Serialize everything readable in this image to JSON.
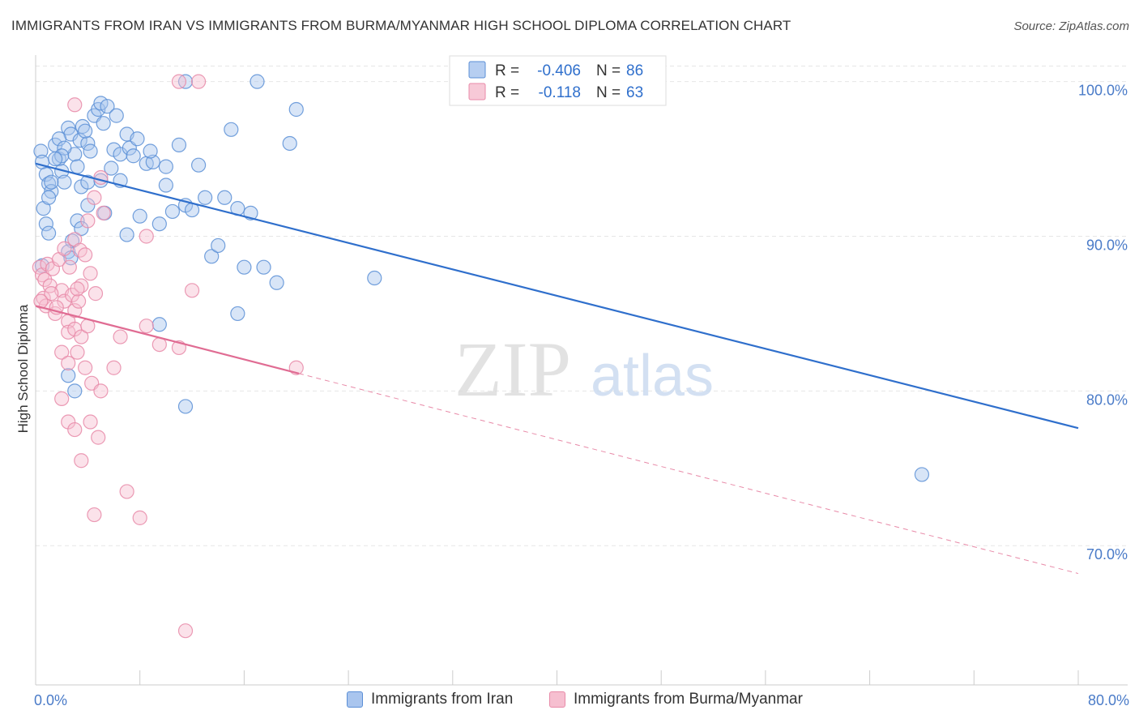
{
  "title": "IMMIGRANTS FROM IRAN VS IMMIGRANTS FROM BURMA/MYANMAR HIGH SCHOOL DIPLOMA CORRELATION CHART",
  "source": "Source: ZipAtlas.com",
  "watermark": {
    "zip": "ZIP",
    "atlas": "atlas"
  },
  "chart_data": {
    "type": "scatter",
    "title": "IMMIGRANTS FROM IRAN VS IMMIGRANTS FROM BURMA/MYANMAR HIGH SCHOOL DIPLOMA CORRELATION CHART",
    "xlabel": "",
    "ylabel": "High School Diploma",
    "xlim": [
      0,
      80
    ],
    "ylim": [
      61,
      101.5
    ],
    "x_tick_labels": [
      "0.0%",
      "80.0%"
    ],
    "y_ticks": [
      70,
      80,
      90,
      100
    ],
    "y_tick_labels": [
      "70.0%",
      "80.0%",
      "90.0%",
      "100.0%"
    ],
    "grid": true,
    "legend_position": "top-center",
    "series": [
      {
        "name": "Immigrants from Iran",
        "color": "#5b8fd6",
        "fill": "#a9c5ee",
        "r_label": "R =",
        "r_value": "-0.406",
        "n_label": "N =",
        "n_value": "86",
        "trend": {
          "x0": 0,
          "y0": 94.7,
          "x1": 80,
          "y1": 77.6,
          "dashed_from": null
        },
        "points": [
          [
            0.4,
            95.5
          ],
          [
            0.5,
            94.8
          ],
          [
            0.8,
            94.0
          ],
          [
            1.0,
            93.4
          ],
          [
            1.2,
            92.9
          ],
          [
            0.6,
            91.8
          ],
          [
            0.8,
            90.8
          ],
          [
            1.0,
            90.2
          ],
          [
            1.5,
            95.9
          ],
          [
            1.8,
            95.0
          ],
          [
            2.0,
            94.2
          ],
          [
            2.2,
            93.5
          ],
          [
            2.5,
            97.0
          ],
          [
            2.7,
            96.6
          ],
          [
            3.0,
            95.3
          ],
          [
            3.2,
            94.5
          ],
          [
            3.4,
            96.2
          ],
          [
            3.6,
            97.1
          ],
          [
            4.0,
            96.0
          ],
          [
            4.2,
            95.5
          ],
          [
            4.5,
            97.8
          ],
          [
            4.8,
            98.2
          ],
          [
            5.0,
            98.6
          ],
          [
            5.2,
            97.3
          ],
          [
            5.5,
            98.4
          ],
          [
            3.5,
            93.2
          ],
          [
            4.0,
            93.5
          ],
          [
            5.0,
            93.6
          ],
          [
            5.3,
            91.5
          ],
          [
            3.2,
            91.0
          ],
          [
            3.5,
            90.5
          ],
          [
            2.8,
            89.7
          ],
          [
            2.5,
            89.0
          ],
          [
            2.7,
            88.6
          ],
          [
            6.0,
            95.6
          ],
          [
            6.5,
            95.3
          ],
          [
            7.0,
            96.6
          ],
          [
            7.2,
            95.7
          ],
          [
            7.5,
            95.2
          ],
          [
            8.5,
            94.7
          ],
          [
            9.0,
            94.8
          ],
          [
            10.0,
            94.5
          ],
          [
            11.0,
            95.9
          ],
          [
            7.0,
            90.1
          ],
          [
            8.0,
            91.3
          ],
          [
            9.5,
            90.8
          ],
          [
            10.5,
            91.6
          ],
          [
            11.5,
            92.0
          ],
          [
            12.0,
            91.7
          ],
          [
            13.5,
            88.7
          ],
          [
            14.0,
            89.4
          ],
          [
            15.5,
            91.8
          ],
          [
            16.0,
            88.0
          ],
          [
            16.5,
            91.5
          ],
          [
            17.5,
            88.0
          ],
          [
            18.5,
            87.0
          ],
          [
            19.5,
            96.0
          ],
          [
            20.0,
            98.2
          ],
          [
            15.0,
            96.9
          ],
          [
            14.5,
            92.5
          ],
          [
            10.0,
            93.3
          ],
          [
            6.5,
            93.6
          ],
          [
            26.0,
            87.3
          ],
          [
            15.5,
            85.0
          ],
          [
            9.5,
            84.3
          ],
          [
            2.5,
            81.0
          ],
          [
            3.0,
            80.0
          ],
          [
            11.5,
            79.0
          ],
          [
            68,
            74.6
          ],
          [
            11.5,
            100.0
          ],
          [
            17.0,
            100.0
          ],
          [
            4.0,
            92.0
          ],
          [
            1.8,
            96.3
          ],
          [
            2.2,
            95.7
          ],
          [
            6.2,
            97.8
          ],
          [
            7.8,
            96.3
          ],
          [
            1.0,
            92.5
          ],
          [
            1.2,
            93.5
          ],
          [
            2.0,
            95.2
          ],
          [
            3.8,
            96.8
          ],
          [
            5.8,
            94.4
          ],
          [
            8.8,
            95.5
          ],
          [
            12.5,
            94.6
          ],
          [
            0.5,
            88.1
          ],
          [
            13.0,
            92.5
          ],
          [
            1.5,
            95.0
          ]
        ]
      },
      {
        "name": "Immigrants from Burma/Myanmar",
        "color": "#e88aa8",
        "fill": "#f6bfd0",
        "r_label": "R =",
        "r_value": "-0.118",
        "n_label": "N =",
        "n_value": "63",
        "trend": {
          "x0": 0,
          "y0": 85.5,
          "x1": 80,
          "y1": 68.2,
          "dashed_from": 20.2
        },
        "points": [
          [
            0.3,
            88.0
          ],
          [
            0.5,
            87.5
          ],
          [
            0.7,
            87.2
          ],
          [
            0.9,
            88.2
          ],
          [
            1.1,
            86.8
          ],
          [
            1.3,
            87.9
          ],
          [
            0.6,
            86.0
          ],
          [
            0.8,
            85.5
          ],
          [
            1.5,
            85.0
          ],
          [
            2.0,
            86.5
          ],
          [
            2.2,
            85.8
          ],
          [
            2.5,
            84.5
          ],
          [
            2.8,
            86.2
          ],
          [
            3.0,
            85.2
          ],
          [
            3.3,
            85.8
          ],
          [
            3.5,
            86.8
          ],
          [
            1.8,
            88.5
          ],
          [
            2.2,
            89.2
          ],
          [
            2.6,
            88.0
          ],
          [
            3.0,
            89.8
          ],
          [
            3.4,
            89.1
          ],
          [
            3.8,
            88.8
          ],
          [
            4.2,
            87.6
          ],
          [
            4.6,
            86.3
          ],
          [
            4.0,
            91.0
          ],
          [
            4.5,
            92.5
          ],
          [
            5.0,
            93.8
          ],
          [
            5.2,
            91.5
          ],
          [
            2.5,
            83.8
          ],
          [
            3.0,
            84.0
          ],
          [
            3.5,
            83.5
          ],
          [
            4.0,
            84.2
          ],
          [
            2.0,
            82.5
          ],
          [
            2.5,
            81.8
          ],
          [
            3.2,
            82.5
          ],
          [
            3.8,
            81.5
          ],
          [
            4.3,
            80.5
          ],
          [
            2.0,
            79.5
          ],
          [
            2.5,
            78.0
          ],
          [
            3.0,
            77.5
          ],
          [
            3.5,
            75.5
          ],
          [
            4.2,
            78.0
          ],
          [
            4.8,
            77.0
          ],
          [
            5.0,
            80.0
          ],
          [
            6.0,
            81.5
          ],
          [
            6.5,
            83.5
          ],
          [
            8.5,
            84.2
          ],
          [
            9.5,
            83.0
          ],
          [
            11.0,
            82.8
          ],
          [
            12.0,
            86.5
          ],
          [
            8.5,
            90.0
          ],
          [
            20.0,
            81.5
          ],
          [
            11.0,
            100.0
          ],
          [
            12.5,
            100.0
          ],
          [
            3.0,
            98.5
          ],
          [
            4.5,
            72.0
          ],
          [
            7.0,
            73.5
          ],
          [
            8.0,
            71.8
          ],
          [
            11.5,
            64.5
          ],
          [
            1.2,
            86.3
          ],
          [
            1.6,
            85.4
          ],
          [
            3.2,
            86.6
          ],
          [
            0.4,
            85.8
          ]
        ]
      }
    ]
  },
  "legend_bottom": {
    "items": [
      {
        "label": "Immigrants from Iran"
      },
      {
        "label": "Immigrants from Burma/Myanmar"
      }
    ]
  }
}
